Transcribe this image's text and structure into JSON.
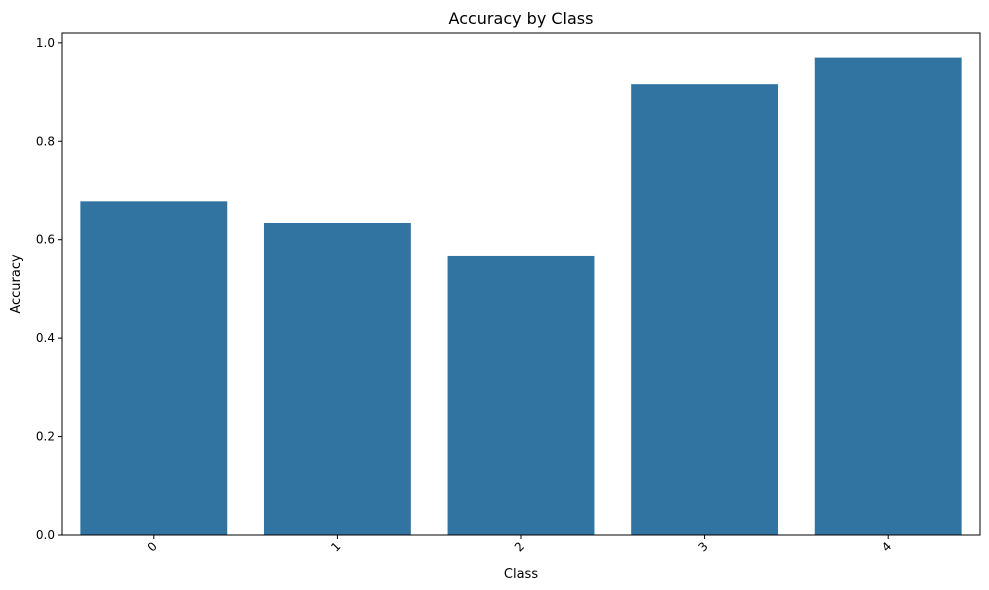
{
  "chart_data": {
    "type": "bar",
    "title": "Accuracy by Class",
    "xlabel": "Class",
    "ylabel": "Accuracy",
    "categories": [
      "0",
      "1",
      "2",
      "3",
      "4"
    ],
    "values": [
      0.678,
      0.634,
      0.567,
      0.916,
      0.97
    ],
    "ylim": [
      0,
      1.02
    ],
    "yticks": [
      0.0,
      0.2,
      0.4,
      0.6,
      0.8,
      1.0
    ],
    "ytick_labels": [
      "0.0",
      "0.2",
      "0.4",
      "0.6",
      "0.8",
      "1.0"
    ],
    "xtick_rotation_deg": 45,
    "grid": false,
    "bar_color": "#3274a1"
  }
}
